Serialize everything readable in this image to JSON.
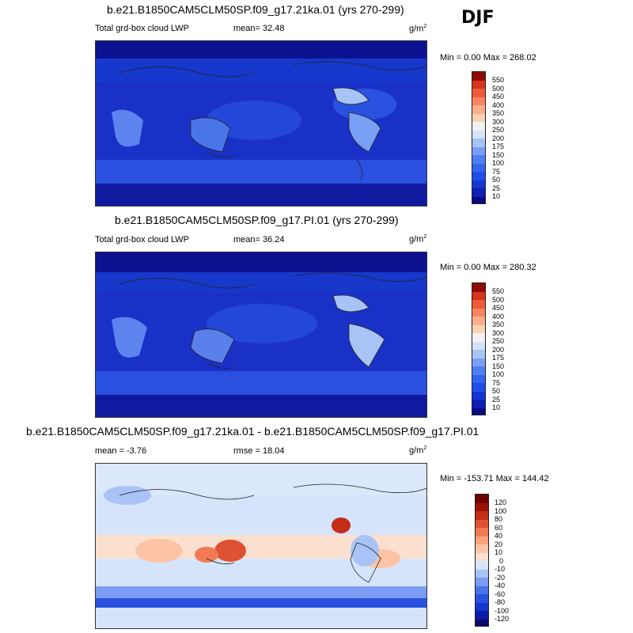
{
  "season": "DJF",
  "units_base": "g/m",
  "units_exp": "2",
  "panels": [
    {
      "title": "b.e21.B1850CAM5CLM50SP.f09_g17.21ka.01 (yrs 270-299)",
      "variable": "Total grd-box cloud LWP",
      "mean_text": "mean=  32.48",
      "minmax_text": "Min =   0.00 Max = 268.02"
    },
    {
      "title": "b.e21.B1850CAM5CLM50SP.f09_g17.PI.01 (yrs 270-299)",
      "variable": "Total grd-box cloud LWP",
      "mean_text": "mean=  36.24",
      "minmax_text": "Min =   0.00 Max = 280.32"
    },
    {
      "title": "b.e21.B1850CAM5CLM50SP.f09_g17.21ka.01 - b.e21.B1850CAM5CLM50SP.f09_g17.PI.01",
      "mean_text": "mean =  -3.76",
      "rmse_text": "rmse =  18.04",
      "minmax_text": "Min = -153.71 Max = 144.42"
    }
  ],
  "chart_data": [
    {
      "type": "heatmap",
      "title": "b.e21.B1850CAM5CLM50SP.f09_g17.21ka.01 (yrs 270-299)",
      "variable": "Total grd-box cloud LWP",
      "units": "g/m2",
      "mean": 32.48,
      "min": 0.0,
      "max": 268.02,
      "colorbar_levels": [
        "10",
        "25",
        "50",
        "75",
        "100",
        "150",
        "175",
        "200",
        "250",
        "300",
        "350",
        "400",
        "450",
        "500",
        "550"
      ],
      "colorbar_colors": [
        "#0a0a82",
        "#0d1fb4",
        "#1536d2",
        "#1f4fe6",
        "#3366ee",
        "#4f7ff2",
        "#7aa0f5",
        "#a8c4f7",
        "#d4e3fa",
        "#f1f1f1",
        "#fcd1b4",
        "#fbae88",
        "#f7845e",
        "#ee5a37",
        "#d6341b",
        "#8e0a05"
      ]
    },
    {
      "type": "heatmap",
      "title": "b.e21.B1850CAM5CLM50SP.f09_g17.PI.01 (yrs 270-299)",
      "variable": "Total grd-box cloud LWP",
      "units": "g/m2",
      "mean": 36.24,
      "min": 0.0,
      "max": 280.32,
      "colorbar_levels": [
        "10",
        "25",
        "50",
        "75",
        "100",
        "150",
        "175",
        "200",
        "250",
        "300",
        "350",
        "400",
        "450",
        "500",
        "550"
      ],
      "colorbar_colors": [
        "#0a0a82",
        "#0d1fb4",
        "#1536d2",
        "#1f4fe6",
        "#3366ee",
        "#4f7ff2",
        "#7aa0f5",
        "#a8c4f7",
        "#d4e3fa",
        "#f1f1f1",
        "#fcd1b4",
        "#fbae88",
        "#f7845e",
        "#ee5a37",
        "#d6341b",
        "#8e0a05"
      ]
    },
    {
      "type": "heatmap",
      "title": "b.e21.B1850CAM5CLM50SP.f09_g17.21ka.01 - b.e21.B1850CAM5CLM50SP.f09_g17.PI.01",
      "units": "g/m2",
      "mean": -3.76,
      "rmse": 18.04,
      "min": -153.71,
      "max": 144.42,
      "colorbar_levels": [
        "-120",
        "-100",
        "-80",
        "-60",
        "-40",
        "-20",
        "-10",
        "0",
        "10",
        "20",
        "40",
        "60",
        "80",
        "100",
        "120"
      ],
      "colorbar_colors": [
        "#08086e",
        "#0b1ca8",
        "#1836d0",
        "#2a52e0",
        "#4a74ea",
        "#7a9cf2",
        "#a9c3f6",
        "#d5e4fa",
        "#fbe0cf",
        "#fcc4a4",
        "#f9a37d",
        "#f07a55",
        "#de5132",
        "#c42d17",
        "#9c1206",
        "#6c0303"
      ]
    }
  ]
}
